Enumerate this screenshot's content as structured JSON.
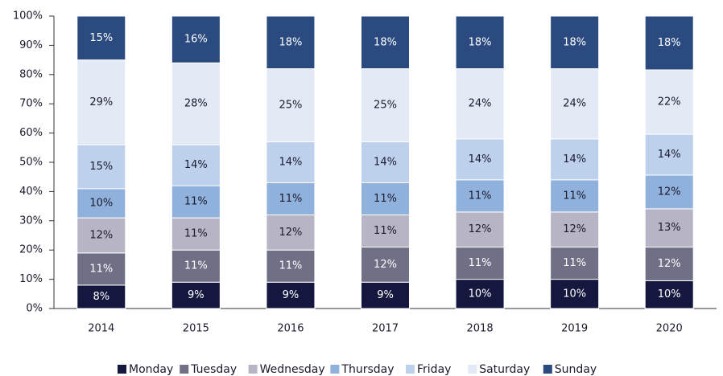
{
  "chart_data": {
    "type": "stacked_bar",
    "categories": [
      "2014",
      "2015",
      "2016",
      "2017",
      "2018",
      "2019",
      "2020"
    ],
    "series": [
      {
        "name": "Monday",
        "color": "#16173f",
        "label_color": "#ffffff",
        "values": [
          8,
          9,
          9,
          9,
          10,
          10,
          9.5
        ],
        "value_labels": [
          "8%",
          "9%",
          "9%",
          "9%",
          "10%",
          "10%",
          "10%"
        ]
      },
      {
        "name": "Tuesday",
        "color": "#6f6f86",
        "label_color": "#ffffff",
        "values": [
          11,
          11,
          11,
          12,
          11,
          11,
          11.5
        ],
        "value_labels": [
          "11%",
          "11%",
          "11%",
          "12%",
          "11%",
          "11%",
          "12%"
        ]
      },
      {
        "name": "Wednesday",
        "color": "#b7b5c5",
        "label_color": "#1a1a2e",
        "values": [
          12,
          11,
          12,
          11,
          12,
          12,
          13.1
        ],
        "value_labels": [
          "12%",
          "11%",
          "12%",
          "11%",
          "12%",
          "12%",
          "13%"
        ]
      },
      {
        "name": "Thursday",
        "color": "#90b1dc",
        "label_color": "#1a1a2e",
        "values": [
          10,
          11,
          11,
          11,
          11,
          11,
          11.5
        ],
        "value_labels": [
          "10%",
          "11%",
          "11%",
          "11%",
          "11%",
          "11%",
          "12%"
        ]
      },
      {
        "name": "Friday",
        "color": "#bdd0ec",
        "label_color": "#1a1a2e",
        "values": [
          15,
          14,
          14,
          14,
          14,
          14,
          14
        ],
        "value_labels": [
          "15%",
          "14%",
          "14%",
          "14%",
          "14%",
          "14%",
          "14%"
        ]
      },
      {
        "name": "Saturday",
        "color": "#e3eaf6",
        "label_color": "#1a1a2e",
        "values": [
          29,
          28,
          25,
          25,
          24,
          24,
          22
        ],
        "value_labels": [
          "29%",
          "28%",
          "25%",
          "25%",
          "24%",
          "24%",
          "22%"
        ]
      },
      {
        "name": "Sunday",
        "color": "#2b4a80",
        "label_color": "#ffffff",
        "values": [
          15,
          16,
          18,
          18,
          18,
          18,
          18.4
        ],
        "value_labels": [
          "15%",
          "16%",
          "18%",
          "18%",
          "18%",
          "18%",
          "18%"
        ]
      }
    ],
    "ylim": [
      0,
      100
    ],
    "yticks": [
      {
        "value": 0,
        "label": "0%"
      },
      {
        "value": 10,
        "label": "10%"
      },
      {
        "value": 20,
        "label": "20%"
      },
      {
        "value": 30,
        "label": "30%"
      },
      {
        "value": 40,
        "label": "40%"
      },
      {
        "value": 50,
        "label": "50%"
      },
      {
        "value": 60,
        "label": "60%"
      },
      {
        "value": 70,
        "label": "70%"
      },
      {
        "value": 80,
        "label": "80%"
      },
      {
        "value": 90,
        "label": "90%"
      },
      {
        "value": 100,
        "label": "100%"
      }
    ],
    "grid": false,
    "legend": "bottom"
  }
}
